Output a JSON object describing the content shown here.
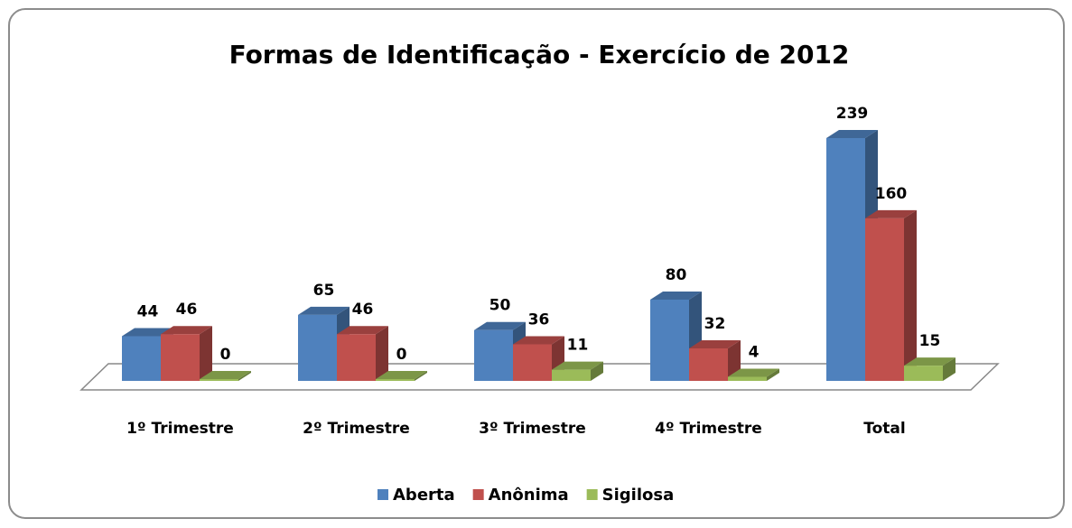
{
  "chart_data": {
    "type": "bar3d",
    "title": "Formas de Identificação - Exercício de 2012",
    "categories": [
      "1º Trimestre",
      "2º Trimestre",
      "3º Trimestre",
      "4º Trimestre",
      "Total"
    ],
    "series": [
      {
        "name": "Aberta",
        "color": "#4f81bd",
        "values": [
          44,
          65,
          50,
          80,
          239
        ]
      },
      {
        "name": "Anônima",
        "color": "#c0504d",
        "values": [
          46,
          46,
          36,
          32,
          160
        ]
      },
      {
        "name": "Sigilosa",
        "color": "#9bbb59",
        "values": [
          0,
          0,
          11,
          4,
          15
        ]
      }
    ],
    "legend": "bottom"
  }
}
